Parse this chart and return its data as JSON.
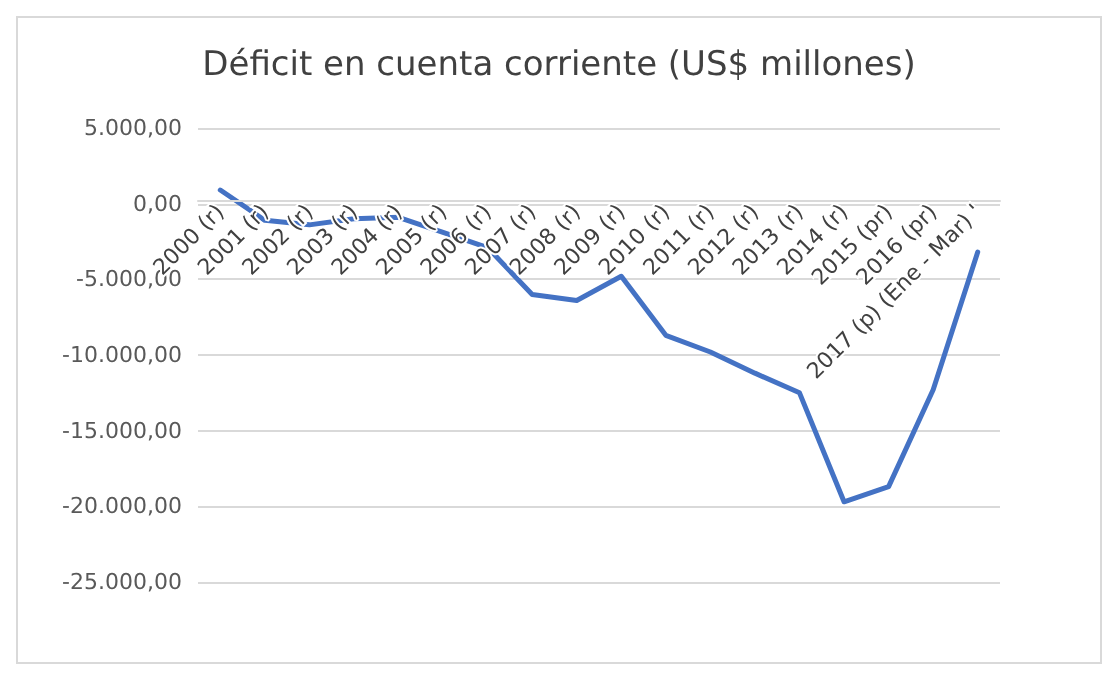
{
  "chart_data": {
    "type": "line",
    "title": "Déficit en cuenta corriente (US$ millones)",
    "categories": [
      "2000 (r)",
      "2001 (r)",
      "2002 (r)",
      "2003 (r)",
      "2004 (r)",
      "2005 (r)",
      "2006 (r)",
      "2007 (r)",
      "2008 (r)",
      "2009 (r)",
      "2010 (r)",
      "2011 (r)",
      "2012 (r)",
      "2013 (r)",
      "2014 (r)",
      "2015 (pr)",
      "2016 (pr)",
      "2017 (p) (Ene - Mar) '"
    ],
    "series": [
      {
        "color": "#4472c4",
        "values": [
          900,
          -1100,
          -1400,
          -1000,
          -900,
          -1900,
          -2900,
          -6000,
          -6400,
          -4800,
          -8700,
          -9800,
          -11200,
          -12500,
          -19700,
          -18700,
          -12300,
          -3200
        ]
      }
    ],
    "ylim": [
      -25000,
      5000
    ],
    "yticks": [
      {
        "value": -25000,
        "label": "-25.000,00"
      },
      {
        "value": -20000,
        "label": "-20.000,00"
      },
      {
        "value": -15000,
        "label": "-15.000,00"
      },
      {
        "value": -10000,
        "label": "-10.000,00"
      },
      {
        "value": -5000,
        "label": "-5.000,00"
      },
      {
        "value": 0,
        "label": "0,00"
      },
      {
        "value": 5000,
        "label": "5.000,00"
      }
    ],
    "grid": "y",
    "marker": "none",
    "line_style": "solid"
  }
}
